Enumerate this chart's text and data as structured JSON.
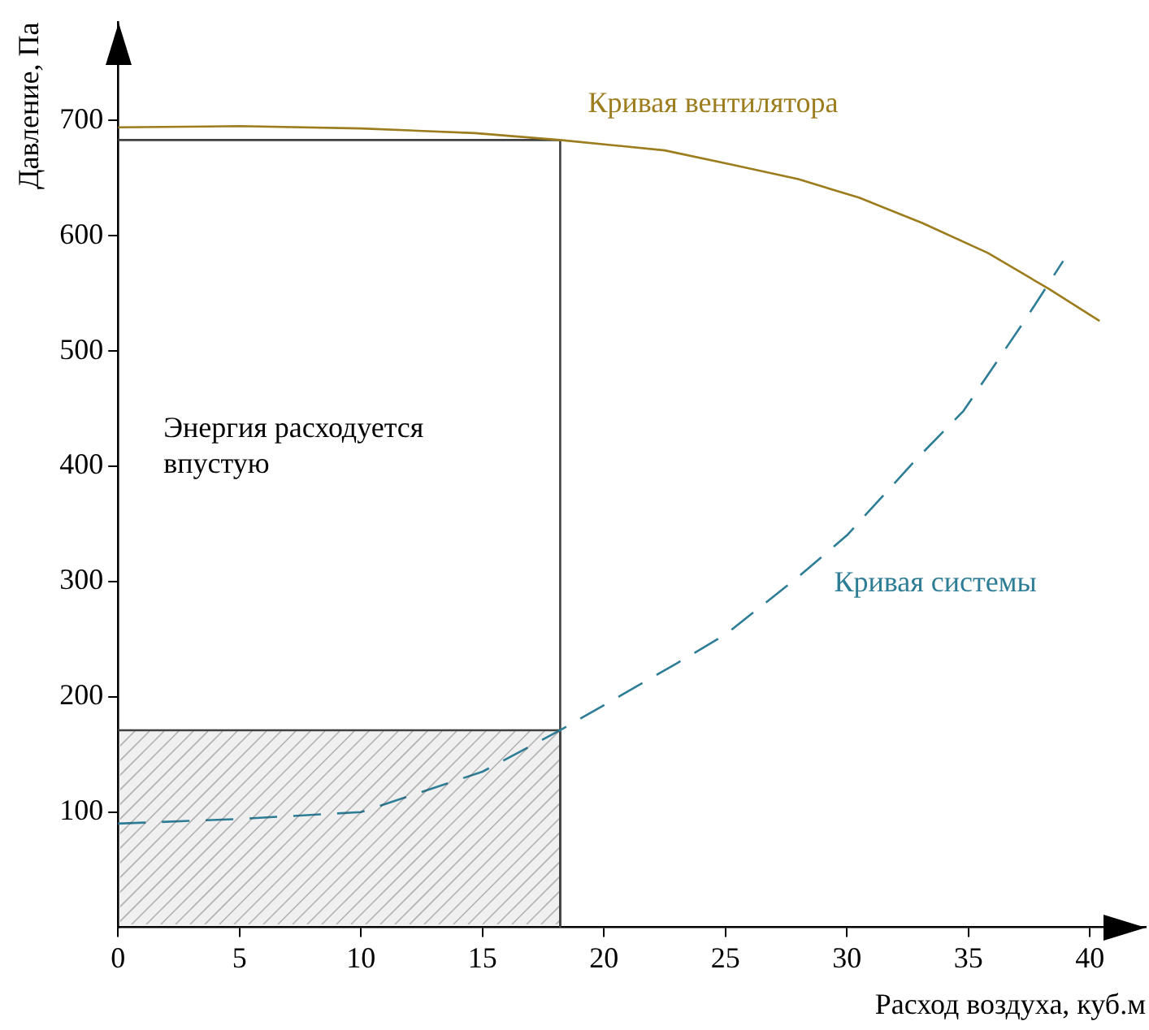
{
  "chart_data": {
    "type": "line",
    "xlabel": "Расход воздуха, куб.м",
    "ylabel": "Давление, Па",
    "xlim": [
      0,
      42.3
    ],
    "ylim": [
      0,
      785
    ],
    "xticks": [
      0,
      5,
      10,
      15,
      20,
      25,
      30,
      35,
      40
    ],
    "yticks": [
      100,
      200,
      300,
      400,
      500,
      600,
      700
    ],
    "grid": false,
    "legend": false,
    "marker": "none",
    "series": [
      {
        "name": "Кривая вентилятора",
        "color": "#9c7c1c",
        "x": [
          0,
          5,
          10,
          14.7,
          18.2,
          22.5,
          25.2,
          28,
          30.5,
          33.1,
          35.8,
          38.3,
          40.4
        ],
        "values": [
          694,
          695,
          693,
          689,
          683,
          674,
          662,
          649,
          633,
          611,
          585,
          554,
          526
        ]
      },
      {
        "name": "Кривая системы",
        "color": "#2e7d96",
        "line_style": "dashed",
        "x": [
          0,
          5,
          10,
          15,
          18.2,
          23,
          25,
          28,
          30,
          32.9,
          34.8,
          37.4,
          38.9
        ],
        "values": [
          90,
          94,
          100,
          135,
          171,
          229,
          254,
          304,
          340,
          407,
          448,
          529,
          578
        ]
      },
      {
        "type": "line",
        "color": "#404040",
        "x": [
          0,
          18.2,
          18.2
        ],
        "values": [
          683,
          683,
          0
        ]
      },
      {
        "type": "area",
        "color": "#404040",
        "x": [
          0,
          18.2,
          18.2
        ],
        "values": [
          171,
          171,
          0
        ]
      }
    ],
    "annotations": [
      "Энергия расходуется впустую"
    ]
  }
}
